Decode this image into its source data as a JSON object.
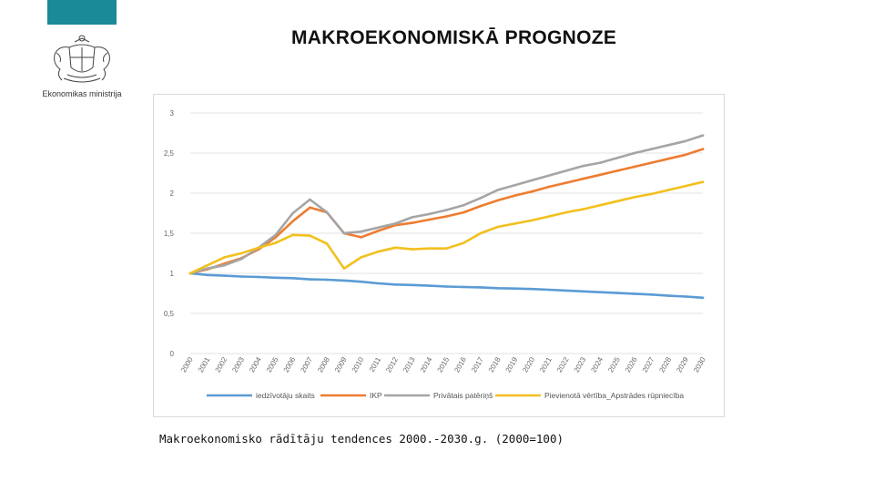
{
  "header": {
    "title": "MAKROEKONOMISKĀ PROGNOZE",
    "accent_color": "#1a8a99"
  },
  "logo": {
    "ministry_name": "Ekonomikas ministrija",
    "icon": "coat-of-arms-icon"
  },
  "caption": "Makroekonomisko rādītāju tendences 2000.-2030.g. (2000=100)",
  "chart_data": {
    "type": "line",
    "title": "",
    "xlabel": "",
    "ylabel": "",
    "x": [
      "2000",
      "2001",
      "2002",
      "2003",
      "2004",
      "2005",
      "2006",
      "2007",
      "2008",
      "2009",
      "2010",
      "2011",
      "2012",
      "2013",
      "2014",
      "2015",
      "2016",
      "2017",
      "2018",
      "2019",
      "2020",
      "2021",
      "2022",
      "2023",
      "2024",
      "2025",
      "2026",
      "2027",
      "2028",
      "2029",
      "2030"
    ],
    "yticks": [
      "0",
      "0,5",
      "1",
      "1,5",
      "2",
      "2,5",
      "3"
    ],
    "ylim": [
      0,
      3
    ],
    "grid": true,
    "legend_position": "bottom",
    "series": [
      {
        "name": "iedzīvotāju skaits",
        "color": "#5b9bd5",
        "values": [
          1.0,
          0.98,
          0.97,
          0.96,
          0.955,
          0.945,
          0.94,
          0.925,
          0.92,
          0.91,
          0.895,
          0.875,
          0.86,
          0.855,
          0.845,
          0.835,
          0.83,
          0.825,
          0.815,
          0.81,
          0.805,
          0.795,
          0.785,
          0.775,
          0.765,
          0.755,
          0.745,
          0.735,
          0.72,
          0.71,
          0.695
        ]
      },
      {
        "name": "IKP",
        "color": "#ed7d31",
        "values": [
          1.0,
          1.05,
          1.12,
          1.19,
          1.3,
          1.45,
          1.65,
          1.82,
          1.76,
          1.5,
          1.45,
          1.53,
          1.6,
          1.63,
          1.67,
          1.71,
          1.76,
          1.84,
          1.91,
          1.97,
          2.02,
          2.08,
          2.13,
          2.18,
          2.23,
          2.28,
          2.33,
          2.38,
          2.43,
          2.48,
          2.55
        ]
      },
      {
        "name": "Privātais patēriņš",
        "color": "#a5a5a5",
        "values": [
          1.0,
          1.06,
          1.1,
          1.18,
          1.32,
          1.48,
          1.75,
          1.92,
          1.76,
          1.5,
          1.52,
          1.57,
          1.62,
          1.7,
          1.74,
          1.79,
          1.85,
          1.94,
          2.04,
          2.1,
          2.16,
          2.22,
          2.28,
          2.34,
          2.38,
          2.44,
          2.5,
          2.55,
          2.6,
          2.65,
          2.72
        ]
      },
      {
        "name": "Pievienotā vērtība_Apstrādes rūpniecība",
        "color": "#f2c01e",
        "values": [
          1.0,
          1.1,
          1.2,
          1.25,
          1.32,
          1.38,
          1.48,
          1.47,
          1.37,
          1.06,
          1.2,
          1.27,
          1.32,
          1.3,
          1.31,
          1.31,
          1.38,
          1.5,
          1.58,
          1.62,
          1.66,
          1.71,
          1.76,
          1.8,
          1.85,
          1.9,
          1.95,
          1.99,
          2.04,
          2.09,
          2.14
        ]
      }
    ]
  }
}
